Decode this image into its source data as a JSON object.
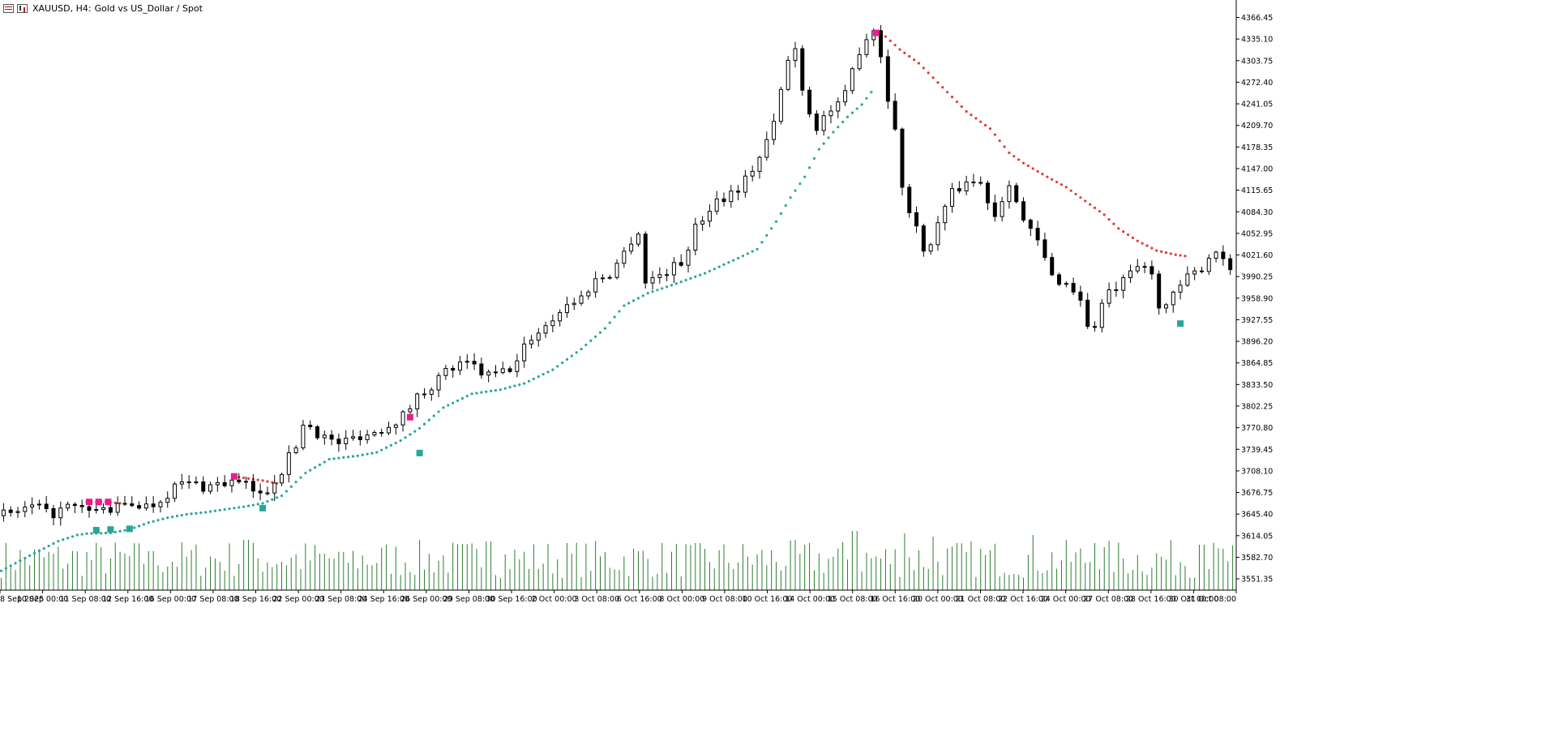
{
  "window": {
    "symbol": "XAUUSD, H4:",
    "description": "Gold vs US_Dollar / Spot"
  },
  "colors": {
    "background": "#ffffff",
    "bull_body": "#ffffff",
    "bear_body": "#000000",
    "candle_outline": "#000000",
    "volume": "#2e7d32",
    "sar_up": "#26a69a",
    "sar_down": "#e53935",
    "signal_buy": "#26a69a",
    "signal_sell": "#e91e8c",
    "axis": "#000000"
  },
  "chart_data": {
    "type": "candlestick",
    "instrument": "XAUUSD",
    "timeframe": "H4",
    "y_axis_ticks": [
      "4366.45",
      "4335.10",
      "4303.75",
      "4272.40",
      "4241.05",
      "4209.70",
      "4178.35",
      "4147.00",
      "4115.65",
      "4084.30",
      "4052.95",
      "4021.60",
      "3990.25",
      "3958.90",
      "3927.55",
      "3896.20",
      "3864.85",
      "3833.50",
      "3802.25",
      "3770.80",
      "3739.45",
      "3708.10",
      "3676.75",
      "3645.40",
      "3614.05",
      "3582.70",
      "3551.35"
    ],
    "ylim": [
      3535,
      4380
    ],
    "x_axis_ticks": [
      "8 Sep 2025",
      "10 Sep 00:00",
      "11 Sep 08:00",
      "12 Sep 16:00",
      "16 Sep 00:00",
      "17 Sep 08:00",
      "18 Sep 16:00",
      "22 Sep 00:00",
      "23 Sep 08:00",
      "24 Sep 16:00",
      "26 Sep 00:00",
      "29 Sep 08:00",
      "30 Sep 16:00",
      "2 Oct 00:00",
      "3 Oct 08:00",
      "6 Oct 16:00",
      "8 Oct 00:00",
      "9 Oct 08:00",
      "10 Oct 16:00",
      "14 Oct 00:00",
      "15 Oct 08:00",
      "16 Oct 16:00",
      "20 Oct 00:00",
      "21 Oct 08:00",
      "22 Oct 16:00",
      "24 Oct 00:00",
      "27 Oct 08:00",
      "28 Oct 16:00",
      "30 Oct 00:00",
      "31 Oct 08:00"
    ],
    "close_path": [
      [
        0,
        3643
      ],
      [
        8,
        3650
      ],
      [
        14,
        3656
      ],
      [
        20,
        3644
      ],
      [
        28,
        3655
      ],
      [
        36,
        3650
      ],
      [
        44,
        3652
      ],
      [
        50,
        3655
      ],
      [
        56,
        3662
      ],
      [
        62,
        3656
      ],
      [
        68,
        3670
      ],
      [
        74,
        3688
      ],
      [
        80,
        3690
      ],
      [
        86,
        3685
      ],
      [
        92,
        3690
      ],
      [
        98,
        3692
      ],
      [
        104,
        3685
      ],
      [
        110,
        3670
      ],
      [
        114,
        3692
      ],
      [
        118,
        3710
      ],
      [
        124,
        3745
      ],
      [
        128,
        3785
      ],
      [
        132,
        3765
      ],
      [
        136,
        3758
      ],
      [
        140,
        3748
      ],
      [
        146,
        3752
      ],
      [
        150,
        3760
      ],
      [
        156,
        3762
      ],
      [
        164,
        3778
      ],
      [
        170,
        3790
      ],
      [
        174,
        3812
      ],
      [
        180,
        3830
      ],
      [
        188,
        3855
      ],
      [
        192,
        3860
      ],
      [
        198,
        3862
      ],
      [
        204,
        3845
      ],
      [
        210,
        3850
      ],
      [
        216,
        3860
      ],
      [
        222,
        3900
      ],
      [
        228,
        3915
      ],
      [
        236,
        3945
      ],
      [
        244,
        3960
      ],
      [
        250,
        3985
      ],
      [
        256,
        3995
      ],
      [
        262,
        4025
      ],
      [
        266,
        4050
      ],
      [
        268,
        4055
      ],
      [
        270,
        3980
      ],
      [
        278,
        3995
      ],
      [
        286,
        4010
      ],
      [
        292,
        4060
      ],
      [
        300,
        4100
      ],
      [
        306,
        4110
      ],
      [
        312,
        4125
      ],
      [
        320,
        4170
      ],
      [
        326,
        4220
      ],
      [
        330,
        4300
      ],
      [
        334,
        4320
      ],
      [
        338,
        4250
      ],
      [
        342,
        4205
      ],
      [
        348,
        4230
      ],
      [
        354,
        4240
      ],
      [
        358,
        4290
      ],
      [
        362,
        4330
      ],
      [
        368,
        4355
      ],
      [
        372,
        4270
      ],
      [
        376,
        4200
      ],
      [
        380,
        4100
      ],
      [
        386,
        4050
      ],
      [
        390,
        4020
      ],
      [
        394,
        4070
      ],
      [
        400,
        4110
      ],
      [
        406,
        4130
      ],
      [
        412,
        4125
      ],
      [
        418,
        4080
      ],
      [
        424,
        4130
      ],
      [
        430,
        4070
      ],
      [
        436,
        4040
      ],
      [
        442,
        3990
      ],
      [
        448,
        3980
      ],
      [
        454,
        3960
      ],
      [
        458,
        3900
      ],
      [
        464,
        3960
      ],
      [
        470,
        3975
      ],
      [
        476,
        3995
      ],
      [
        480,
        4010
      ],
      [
        484,
        3990
      ],
      [
        488,
        3940
      ],
      [
        494,
        3965
      ],
      [
        498,
        3985
      ],
      [
        504,
        3999
      ],
      [
        508,
        4020
      ],
      [
        512,
        4030
      ],
      [
        516,
        4005
      ],
      [
        518,
        4010
      ]
    ],
    "sar_path": [
      [
        0,
        3563
      ],
      [
        12,
        3585
      ],
      [
        24,
        3606
      ],
      [
        32,
        3615
      ],
      [
        36,
        3617
      ],
      [
        46,
        3618
      ],
      [
        54,
        3623
      ],
      [
        62,
        3633
      ],
      [
        70,
        3640
      ],
      [
        78,
        3645
      ],
      [
        86,
        3648
      ],
      [
        94,
        3652
      ],
      [
        102,
        3656
      ],
      [
        110,
        3661
      ],
      [
        118,
        3672
      ],
      [
        128,
        3705
      ],
      [
        138,
        3725
      ],
      [
        150,
        3730
      ],
      [
        158,
        3735
      ],
      [
        168,
        3752
      ],
      [
        176,
        3770
      ],
      [
        186,
        3800
      ],
      [
        198,
        3820
      ],
      [
        210,
        3826
      ],
      [
        220,
        3835
      ],
      [
        232,
        3855
      ],
      [
        244,
        3885
      ],
      [
        254,
        3915
      ],
      [
        262,
        3948
      ],
      [
        272,
        3966
      ],
      [
        284,
        3980
      ],
      [
        296,
        3995
      ],
      [
        310,
        4017
      ],
      [
        318,
        4030
      ],
      [
        326,
        4070
      ],
      [
        332,
        4105
      ],
      [
        338,
        4135
      ],
      [
        344,
        4175
      ],
      [
        350,
        4200
      ],
      [
        356,
        4222
      ],
      [
        362,
        4240
      ],
      [
        366,
        4258
      ]
    ],
    "sar_down_paths": [
      [
        [
          36,
          3663
        ],
        [
          44,
          3663
        ],
        [
          50,
          3661
        ]
      ],
      [
        [
          98,
          3700
        ],
        [
          104,
          3697
        ],
        [
          110,
          3694
        ],
        [
          116,
          3690
        ]
      ],
      [
        [
          370,
          4345
        ],
        [
          378,
          4320
        ],
        [
          386,
          4300
        ],
        [
          396,
          4265
        ],
        [
          406,
          4230
        ],
        [
          416,
          4205
        ],
        [
          424,
          4170
        ],
        [
          430,
          4155
        ],
        [
          440,
          4135
        ],
        [
          448,
          4120
        ],
        [
          456,
          4100
        ],
        [
          464,
          4080
        ],
        [
          470,
          4060
        ],
        [
          478,
          4042
        ],
        [
          486,
          4028
        ],
        [
          494,
          4022
        ],
        [
          498,
          4020
        ]
      ]
    ],
    "buy_markers": [
      [
        40,
        3622
      ],
      [
        46,
        3623
      ],
      [
        54,
        3624
      ],
      [
        110,
        3654
      ],
      [
        176,
        3734
      ],
      [
        496,
        3922
      ]
    ],
    "sell_markers": [
      [
        37,
        3663
      ],
      [
        41,
        3663
      ],
      [
        45,
        3663
      ],
      [
        98,
        3700
      ],
      [
        172,
        3786
      ],
      [
        368,
        4344
      ]
    ],
    "volume": {
      "range_min": 15,
      "range_max": 62,
      "peaks": [
        [
          63,
          48
        ],
        [
          103,
          62
        ],
        [
          144,
          47
        ],
        [
          205,
          60
        ],
        [
          293,
          58
        ],
        [
          359,
          73
        ],
        [
          380,
          70
        ],
        [
          392,
          66
        ],
        [
          434,
          68
        ],
        [
          460,
          58
        ],
        [
          505,
          56
        ]
      ]
    }
  }
}
